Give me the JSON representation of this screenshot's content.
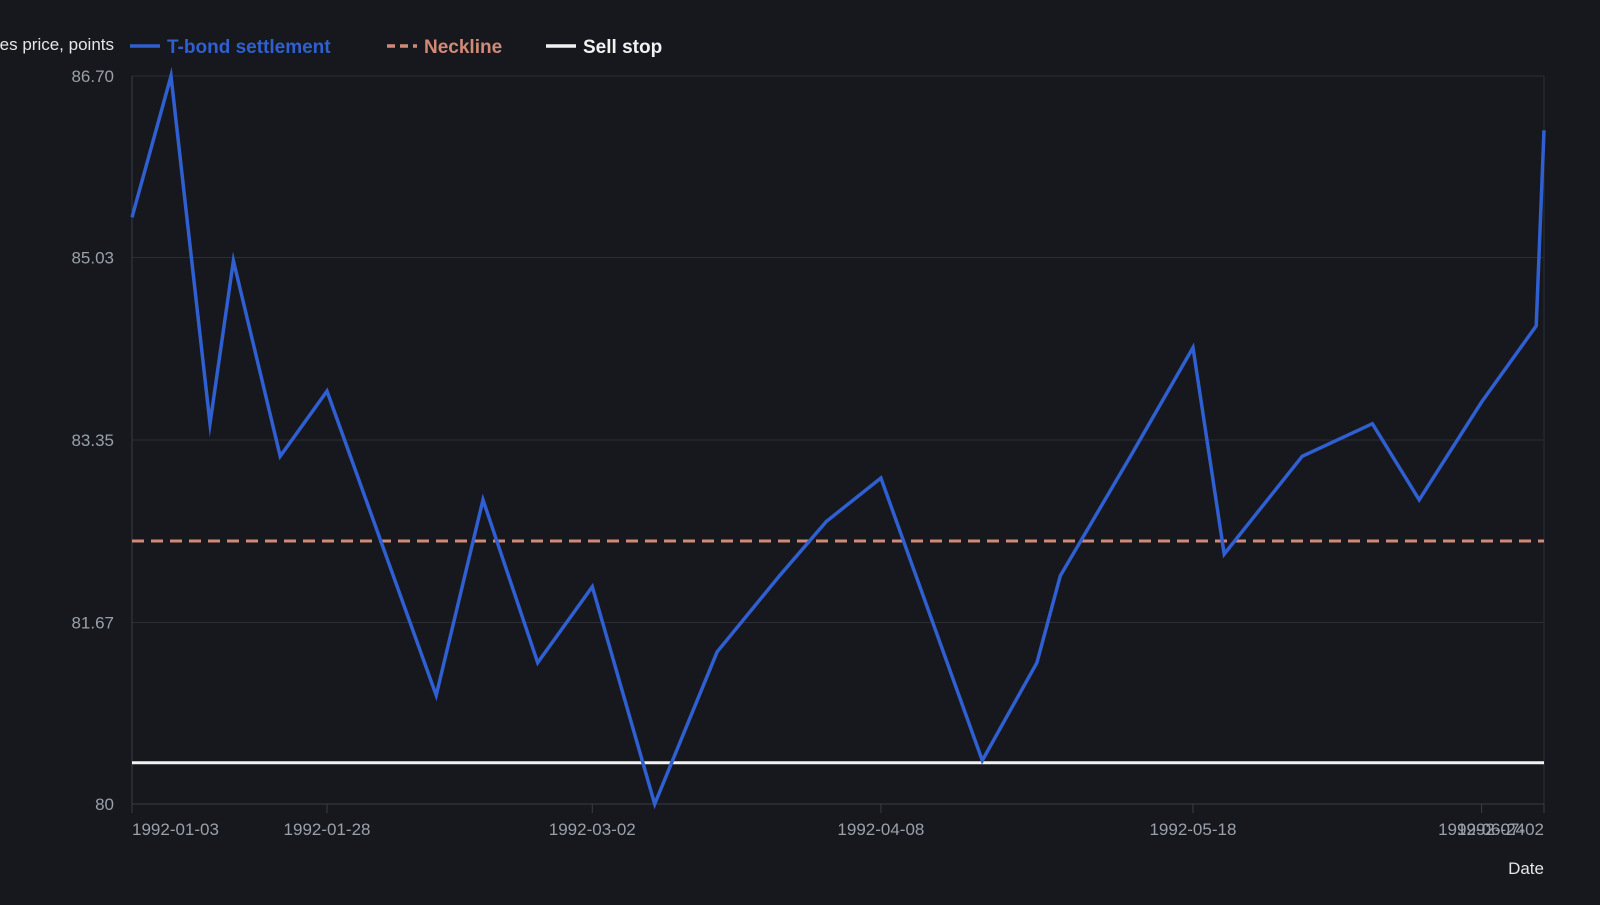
{
  "chart_data": {
    "type": "line",
    "xlabel": "Date",
    "ylabel": "Futures price, points",
    "ylim": [
      80,
      86.7
    ],
    "yticks": [
      "80",
      "81.67",
      "83.35",
      "85.03",
      "86.70"
    ],
    "xlim": [
      "1992-01-03",
      "1992-07-02"
    ],
    "xticks": [
      "1992-01-03",
      "1992-01-28",
      "1992-03-02",
      "1992-04-08",
      "1992-05-18",
      "1992-06-24",
      "1992-07-02"
    ],
    "grid": true,
    "legend_position": "top-left",
    "series": [
      {
        "name": "T-bond settlement",
        "color": "#2f5fd0",
        "style": "solid",
        "x": [
          "1992-01-03",
          "1992-01-08",
          "1992-01-13",
          "1992-01-16",
          "1992-01-22",
          "1992-01-28",
          "1992-02-03",
          "1992-02-11",
          "1992-02-17",
          "1992-02-24",
          "1992-03-02",
          "1992-03-10",
          "1992-03-18",
          "1992-03-26",
          "1992-04-01",
          "1992-04-08",
          "1992-04-21",
          "1992-04-28",
          "1992-05-01",
          "1992-05-10",
          "1992-05-18",
          "1992-05-22",
          "1992-06-01",
          "1992-06-10",
          "1992-06-16",
          "1992-06-24",
          "1992-07-01",
          "1992-07-02"
        ],
        "values": [
          85.4,
          86.7,
          83.5,
          85.0,
          83.2,
          83.8,
          82.6,
          81.0,
          82.8,
          81.3,
          82.0,
          80.0,
          81.4,
          82.1,
          82.6,
          83.0,
          80.4,
          81.3,
          82.1,
          83.2,
          84.2,
          82.3,
          83.2,
          83.5,
          82.8,
          83.7,
          84.4,
          86.2
        ]
      },
      {
        "name": "Neckline",
        "color": "#d08a78",
        "style": "dashed",
        "value": 82.42
      },
      {
        "name": "Sell stop",
        "color": "#f2f2f2",
        "style": "solid",
        "value": 80.38
      }
    ]
  }
}
